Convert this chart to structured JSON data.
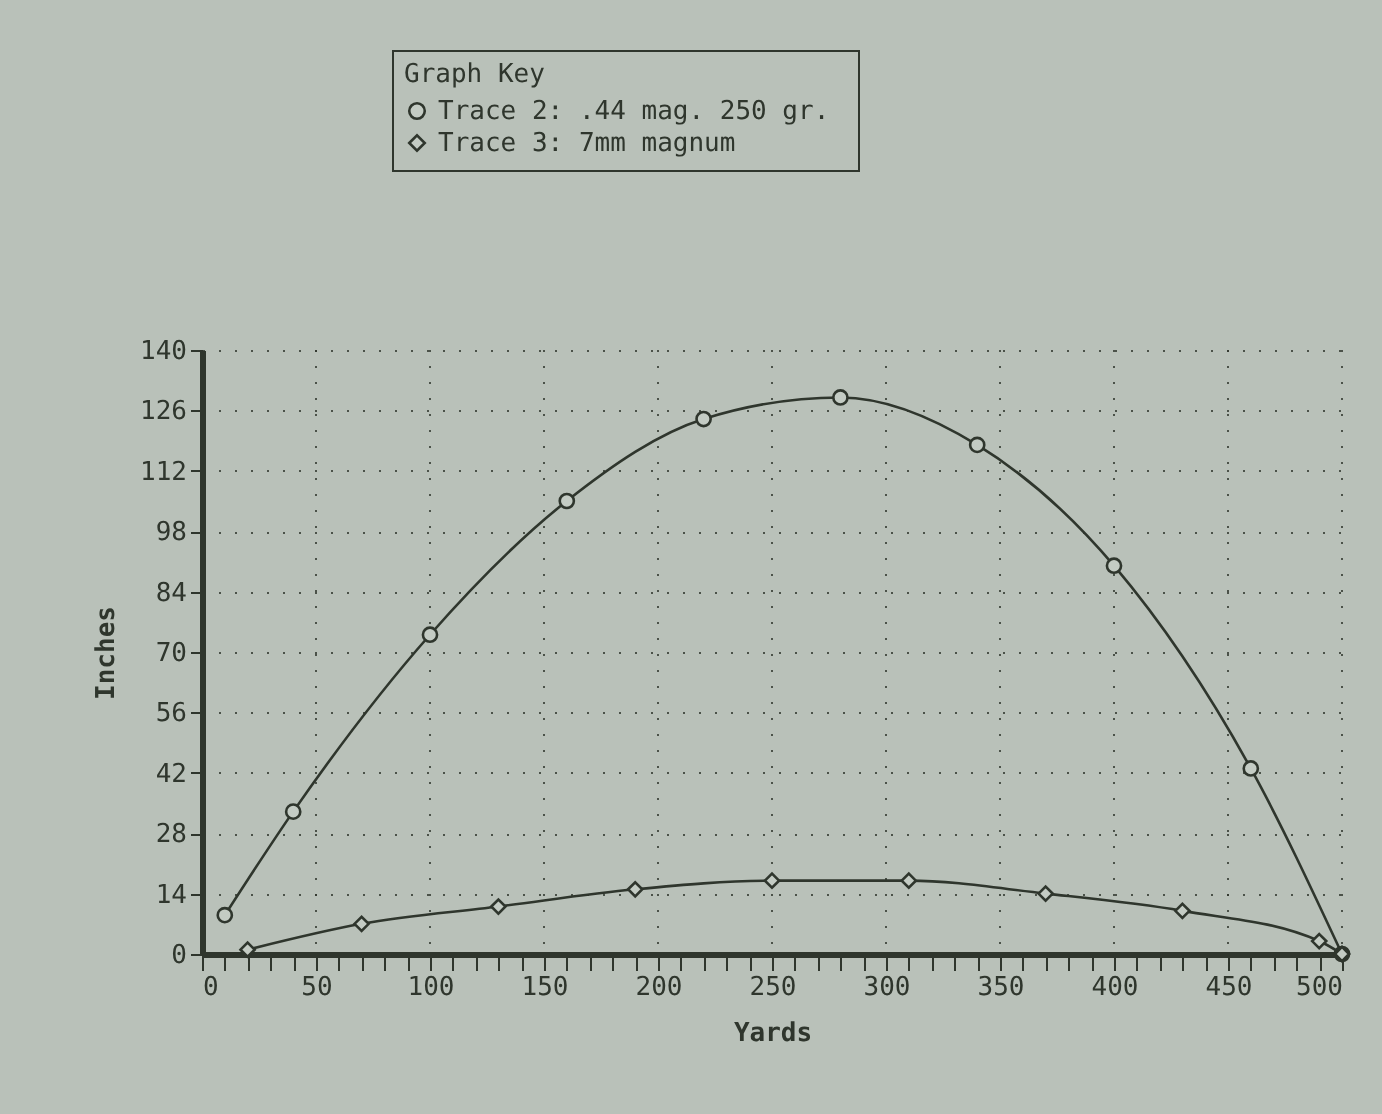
{
  "chart_data": {
    "type": "line",
    "xlabel": "Yards",
    "ylabel": "Inches",
    "legend_title": "Graph Key",
    "xlim": [
      0,
      500
    ],
    "ylim": [
      0,
      140
    ],
    "xticks": [
      0,
      {
        "value": 10,
        "label": null
      },
      {
        "value": 20,
        "label": null
      },
      {
        "value": 30,
        "label": null
      },
      {
        "value": 40,
        "label": null
      },
      50,
      {
        "value": 60,
        "label": null
      },
      {
        "value": 70,
        "label": null
      },
      {
        "value": 80,
        "label": null
      },
      {
        "value": 90,
        "label": null
      },
      100,
      {
        "value": 110,
        "label": null
      },
      {
        "value": 120,
        "label": null
      },
      {
        "value": 130,
        "label": null
      },
      {
        "value": 140,
        "label": null
      },
      150,
      {
        "value": 160,
        "label": null
      },
      {
        "value": 170,
        "label": null
      },
      {
        "value": 180,
        "label": null
      },
      {
        "value": 190,
        "label": null
      },
      200,
      {
        "value": 210,
        "label": null
      },
      {
        "value": 220,
        "label": null
      },
      {
        "value": 230,
        "label": null
      },
      {
        "value": 240,
        "label": null
      },
      250,
      {
        "value": 260,
        "label": null
      },
      {
        "value": 270,
        "label": null
      },
      {
        "value": 280,
        "label": null
      },
      {
        "value": 290,
        "label": null
      },
      300,
      {
        "value": 310,
        "label": null
      },
      {
        "value": 320,
        "label": null
      },
      {
        "value": 330,
        "label": null
      },
      {
        "value": 340,
        "label": null
      },
      350,
      {
        "value": 360,
        "label": null
      },
      {
        "value": 370,
        "label": null
      },
      {
        "value": 380,
        "label": null
      },
      {
        "value": 390,
        "label": null
      },
      400,
      {
        "value": 410,
        "label": null
      },
      {
        "value": 420,
        "label": null
      },
      {
        "value": 430,
        "label": null
      },
      {
        "value": 440,
        "label": null
      },
      450,
      {
        "value": 460,
        "label": null
      },
      {
        "value": 470,
        "label": null
      },
      {
        "value": 480,
        "label": null
      },
      {
        "value": 490,
        "label": null
      },
      500
    ],
    "yticks": [
      0,
      14,
      28,
      42,
      56,
      70,
      84,
      98,
      112,
      126,
      140
    ],
    "grid": true,
    "legend": "top",
    "line_style": "solid",
    "series": [
      {
        "name": "Trace 2:  .44 mag. 250 gr.",
        "color": "#2f362d",
        "marker": "circle",
        "x": [
          10,
          40,
          100,
          160,
          220,
          280,
          340,
          400,
          460,
          500
        ],
        "values": [
          9,
          33,
          74,
          105,
          124,
          129,
          118,
          90,
          43,
          0
        ]
      },
      {
        "name": "Trace 3:  7mm magnum",
        "color": "#2f362d",
        "marker": "diamond",
        "x": [
          20,
          70,
          130,
          190,
          250,
          310,
          370,
          430,
          490,
          500
        ],
        "values": [
          1,
          7,
          11,
          15,
          17,
          17,
          14,
          10,
          3,
          0
        ]
      }
    ]
  }
}
